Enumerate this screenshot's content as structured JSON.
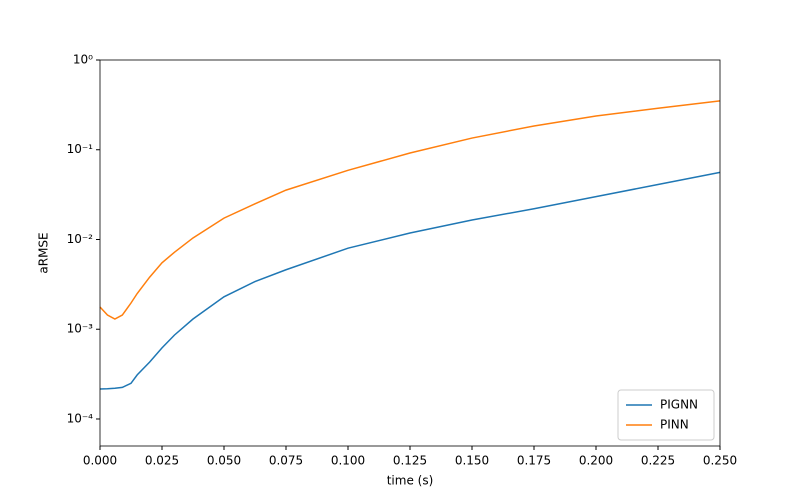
{
  "chart_data": {
    "type": "line",
    "x_label": "time (s)",
    "y_label": "aRMSE",
    "x": [
      0,
      0.003,
      0.006,
      0.009,
      0.0125,
      0.015,
      0.02,
      0.025,
      0.03,
      0.0375,
      0.05,
      0.0625,
      0.075,
      0.1,
      0.125,
      0.15,
      0.175,
      0.2,
      0.225,
      0.25
    ],
    "series": [
      {
        "name": "PIGNN",
        "color": "#1f77b4",
        "values": [
          0.000216,
          0.000217,
          0.00022,
          0.000225,
          0.00025,
          0.00031,
          0.00043,
          0.00062,
          0.00086,
          0.0013,
          0.0023,
          0.0034,
          0.0046,
          0.008,
          0.0118,
          0.0165,
          0.022,
          0.03,
          0.041,
          0.056
        ]
      },
      {
        "name": "PINN",
        "color": "#ff7f0e",
        "values": [
          0.00177,
          0.00144,
          0.0013,
          0.00144,
          0.00196,
          0.0025,
          0.0038,
          0.0055,
          0.0072,
          0.0104,
          0.0173,
          0.025,
          0.0355,
          0.059,
          0.092,
          0.135,
          0.184,
          0.238,
          0.29,
          0.35
        ]
      }
    ],
    "xlim": [
      0,
      0.25
    ],
    "xticks": [
      {
        "value": 0,
        "label": "0.000"
      },
      {
        "value": 0.025,
        "label": "0.025"
      },
      {
        "value": 0.05,
        "label": "0.050"
      },
      {
        "value": 0.075,
        "label": "0.075"
      },
      {
        "value": 0.1,
        "label": "0.100"
      },
      {
        "value": 0.125,
        "label": "0.125"
      },
      {
        "value": 0.15,
        "label": "0.150"
      },
      {
        "value": 0.175,
        "label": "0.175"
      },
      {
        "value": 0.2,
        "label": "0.200"
      },
      {
        "value": 0.225,
        "label": "0.225"
      },
      {
        "value": 0.25,
        "label": "0.250"
      }
    ],
    "ylim": [
      5e-05,
      1
    ],
    "yticks": [
      {
        "value": 0.0001,
        "label": "10⁻⁴"
      },
      {
        "value": 0.001,
        "label": "10⁻³"
      },
      {
        "value": 0.01,
        "label": "10⁻²"
      },
      {
        "value": 0.1,
        "label": "10⁻¹"
      },
      {
        "value": 1,
        "label": "10⁰"
      }
    ],
    "y_scale": "log",
    "grid": false,
    "legend_position": "lower right"
  }
}
